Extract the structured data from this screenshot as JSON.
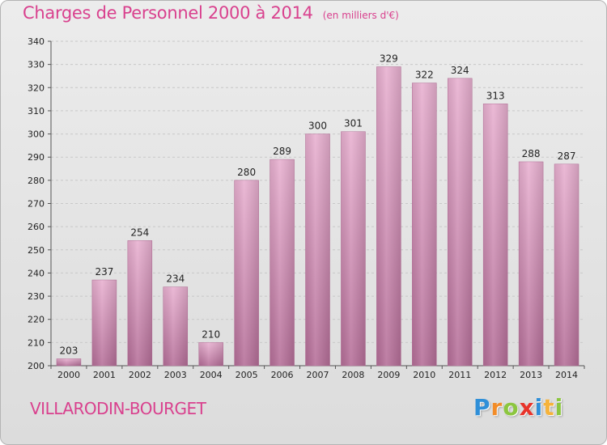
{
  "header": {
    "title": "Charges de Personnel 2000 à 2014",
    "unit": "(en milliers d'€)"
  },
  "footer": {
    "commune": "VILLARODIN-BOURGET",
    "logo_letters": [
      {
        "ch": "P",
        "color": "#2f8fd8"
      },
      {
        "ch": "r",
        "color": "#f28c28"
      },
      {
        "ch": "o",
        "color": "#8cc63f"
      },
      {
        "ch": "x",
        "color": "#e8332a"
      },
      {
        "ch": "i",
        "color": "#2f8fd8"
      },
      {
        "ch": "t",
        "color": "#f6b33a"
      },
      {
        "ch": "i",
        "color": "#8cc63f"
      }
    ]
  },
  "chart_data": {
    "type": "bar",
    "title": "Charges de Personnel 2000 à 2014",
    "subtitle": "(en milliers d'€)",
    "categories": [
      "2000",
      "2001",
      "2002",
      "2003",
      "2004",
      "2005",
      "2006",
      "2007",
      "2008",
      "2009",
      "2010",
      "2011",
      "2012",
      "2013",
      "2014"
    ],
    "values": [
      203,
      237,
      254,
      234,
      210,
      280,
      289,
      300,
      301,
      329,
      322,
      324,
      313,
      288,
      287
    ],
    "ylim": [
      200,
      340
    ],
    "yticks": [
      200,
      210,
      220,
      230,
      240,
      250,
      260,
      270,
      280,
      290,
      300,
      310,
      320,
      330,
      340
    ],
    "grid": true,
    "bar_color": "#d98ab6",
    "bar_color_light": "#e8b0d0",
    "bar_color_dark": "#b56e98",
    "data_labels": true
  }
}
